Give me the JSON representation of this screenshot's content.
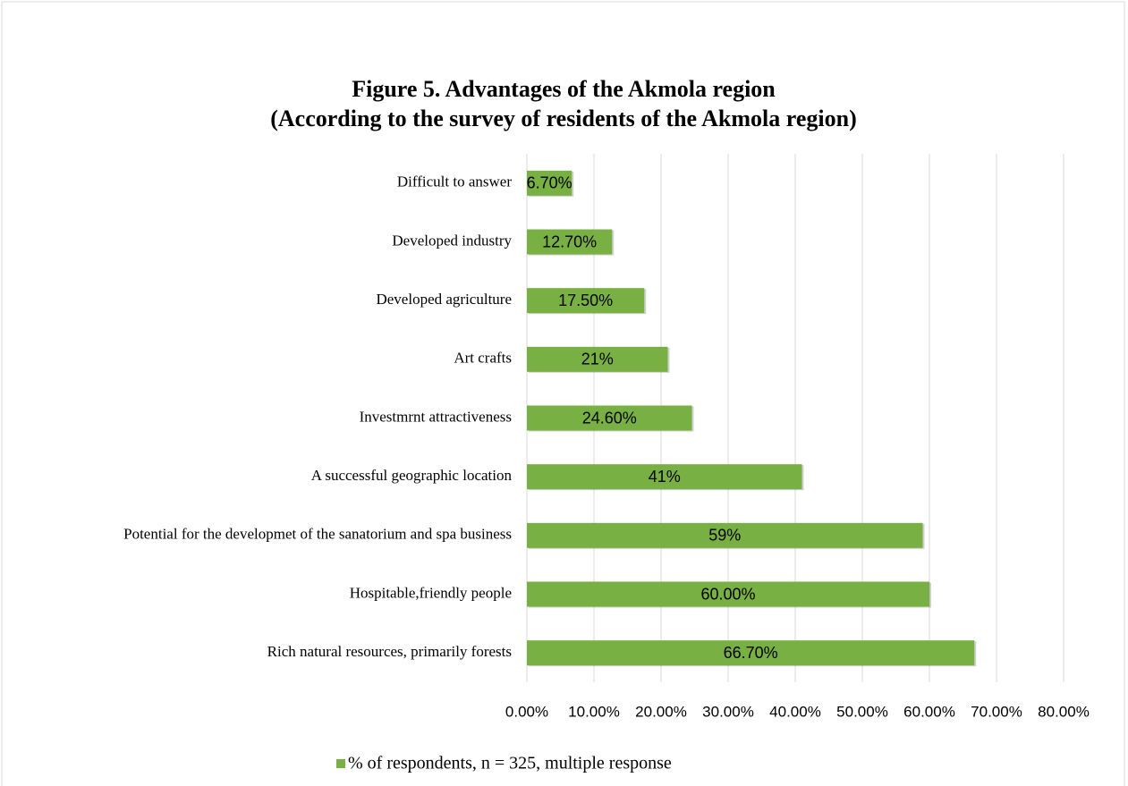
{
  "chart_data": {
    "type": "hbar",
    "title": [
      "Figure 5. Advantages of the Akmola region",
      "(According to the survey of residents of the Akmola region)"
    ],
    "categories": [
      "Difficult to answer",
      "Developed industry",
      "Developed agriculture",
      "Art crafts",
      "Investmrnt attractiveness",
      "A successful geographic location",
      "Potential for the developmet of the sanatorium and spa business",
      "Hospitable,friendly people",
      "Rich natural resources, primarily forests"
    ],
    "series": [
      {
        "name": "% of respondents, n = 325, multiple response",
        "color": "#78b043",
        "values": [
          6.7,
          12.7,
          17.5,
          21,
          24.6,
          41,
          59,
          60,
          66.7
        ],
        "value_labels": [
          "6.70%",
          "12.70%",
          "17.50%",
          "21%",
          "24.60%",
          "41%",
          "59%",
          "60.00%",
          "66.70%"
        ]
      }
    ],
    "xlim": [
      0,
      80
    ],
    "xticks": [
      {
        "value": 0,
        "label": "0.00%"
      },
      {
        "value": 10,
        "label": "10.00%"
      },
      {
        "value": 20,
        "label": "20.00%"
      },
      {
        "value": 30,
        "label": "30.00%"
      },
      {
        "value": 40,
        "label": "40.00%"
      },
      {
        "value": 50,
        "label": "50.00%"
      },
      {
        "value": 60,
        "label": "60.00%"
      },
      {
        "value": 70,
        "label": "70.00%"
      },
      {
        "value": 80,
        "label": "80.00%"
      }
    ],
    "grid": true,
    "legend": "bottom"
  }
}
